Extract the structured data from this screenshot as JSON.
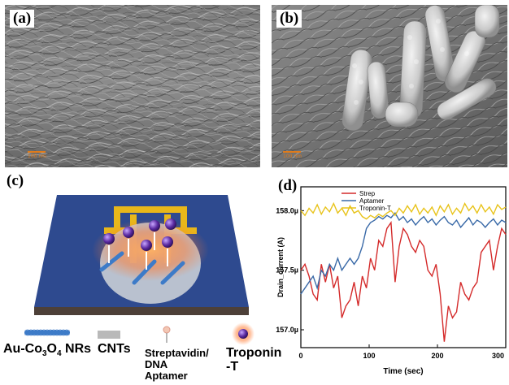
{
  "panels": {
    "a": {
      "label": "(a)",
      "scalebar": "100 nm"
    },
    "b": {
      "label": "(b)",
      "scalebar": "100 nm"
    },
    "c": {
      "label": "(c)"
    },
    "d": {
      "label": "(d)"
    }
  },
  "schematic_legend": [
    {
      "name": "Au-Co3O4 NRs",
      "text_main": "Au-Co",
      "sub1": "3",
      "text_mid": "O",
      "sub2": "4",
      "text_end": " NRs"
    },
    {
      "name": "CNTs",
      "text": "CNTs"
    },
    {
      "name": "Streptavidin/DNA Aptamer",
      "lines": [
        "Streptavidin/",
        "DNA",
        "Aptamer"
      ]
    },
    {
      "name": "Troponin-T",
      "lines": [
        "Troponin",
        "-T"
      ]
    }
  ],
  "colors": {
    "chip": "#2e4a8f",
    "gold": "#e8b71a",
    "strep": "#d42a2a",
    "aptamer": "#3a6aa8",
    "troponin": "#e8c31a"
  },
  "chart_data": {
    "type": "line",
    "xlabel": "Time (sec)",
    "ylabel": "Drain_current (A)",
    "xlim": [
      0,
      300
    ],
    "ylim": [
      156.85,
      158.2
    ],
    "xticks": [
      "0",
      "100",
      "200",
      "300"
    ],
    "xtick_values": [
      0,
      100,
      200,
      300
    ],
    "yticks": [
      "157.0µ",
      "157.5µ",
      "158.0µ"
    ],
    "ytick_values": [
      157.0,
      157.5,
      158.0
    ],
    "legend_position": "top-left",
    "series": [
      {
        "name": "Strep",
        "color": "#d42a2a",
        "x": [
          0,
          6,
          12,
          18,
          24,
          30,
          36,
          42,
          48,
          54,
          60,
          66,
          72,
          78,
          84,
          90,
          96,
          102,
          108,
          114,
          120,
          126,
          132,
          138,
          144,
          150,
          156,
          162,
          168,
          174,
          180,
          186,
          192,
          198,
          204,
          210,
          216,
          222,
          228,
          234,
          240,
          246,
          252,
          258,
          264,
          270,
          276,
          282,
          288,
          294,
          300
        ],
        "y": [
          157.5,
          157.55,
          157.45,
          157.3,
          157.25,
          157.55,
          157.4,
          157.55,
          157.35,
          157.45,
          157.1,
          157.2,
          157.25,
          157.4,
          157.2,
          157.45,
          157.35,
          157.6,
          157.5,
          157.75,
          157.7,
          157.85,
          157.9,
          157.4,
          157.7,
          157.85,
          157.8,
          157.7,
          157.65,
          157.75,
          157.7,
          157.5,
          157.45,
          157.55,
          157.3,
          156.9,
          157.2,
          157.1,
          157.15,
          157.4,
          157.3,
          157.25,
          157.35,
          157.4,
          157.65,
          157.7,
          157.75,
          157.5,
          157.7,
          157.85,
          157.8
        ]
      },
      {
        "name": "Aptamer",
        "color": "#3a6aa8",
        "x": [
          0,
          6,
          12,
          18,
          24,
          30,
          36,
          42,
          48,
          54,
          60,
          66,
          72,
          78,
          84,
          90,
          96,
          102,
          108,
          114,
          120,
          126,
          132,
          138,
          144,
          150,
          156,
          162,
          168,
          174,
          180,
          186,
          192,
          198,
          204,
          210,
          216,
          222,
          228,
          234,
          240,
          246,
          252,
          258,
          264,
          270,
          276,
          282,
          288,
          294,
          300
        ],
        "y": [
          157.3,
          157.35,
          157.4,
          157.45,
          157.35,
          157.5,
          157.45,
          157.55,
          157.5,
          157.6,
          157.5,
          157.55,
          157.6,
          157.55,
          157.6,
          157.7,
          157.85,
          157.9,
          157.92,
          157.95,
          157.93,
          157.96,
          157.94,
          157.98,
          157.92,
          157.95,
          157.9,
          157.93,
          157.88,
          157.92,
          157.95,
          157.9,
          157.93,
          157.88,
          157.92,
          157.95,
          157.9,
          157.88,
          157.92,
          157.86,
          157.9,
          157.94,
          157.88,
          157.92,
          157.9,
          157.86,
          157.9,
          157.93,
          157.88,
          157.92,
          157.9
        ]
      },
      {
        "name": "Troponin-T",
        "color": "#e8c31a",
        "x": [
          0,
          6,
          12,
          18,
          24,
          30,
          36,
          42,
          48,
          54,
          60,
          66,
          72,
          78,
          84,
          90,
          96,
          102,
          108,
          114,
          120,
          126,
          132,
          138,
          144,
          150,
          156,
          162,
          168,
          174,
          180,
          186,
          192,
          198,
          204,
          210,
          216,
          222,
          228,
          234,
          240,
          246,
          252,
          258,
          264,
          270,
          276,
          282,
          288,
          294,
          300
        ],
        "y": [
          158.0,
          157.96,
          158.02,
          157.98,
          158.05,
          157.97,
          158.03,
          157.99,
          158.06,
          157.98,
          158.02,
          157.96,
          158.04,
          157.98,
          158.0,
          157.95,
          157.93,
          157.96,
          157.94,
          157.97,
          157.95,
          157.98,
          158.0,
          157.96,
          158.02,
          157.98,
          158.04,
          157.99,
          158.05,
          157.97,
          158.02,
          157.98,
          158.03,
          157.96,
          158.04,
          157.99,
          158.05,
          157.97,
          158.02,
          157.98,
          158.06,
          158.0,
          158.04,
          157.98,
          158.05,
          157.99,
          158.03,
          157.97,
          158.05,
          158.01,
          158.03
        ]
      }
    ]
  }
}
